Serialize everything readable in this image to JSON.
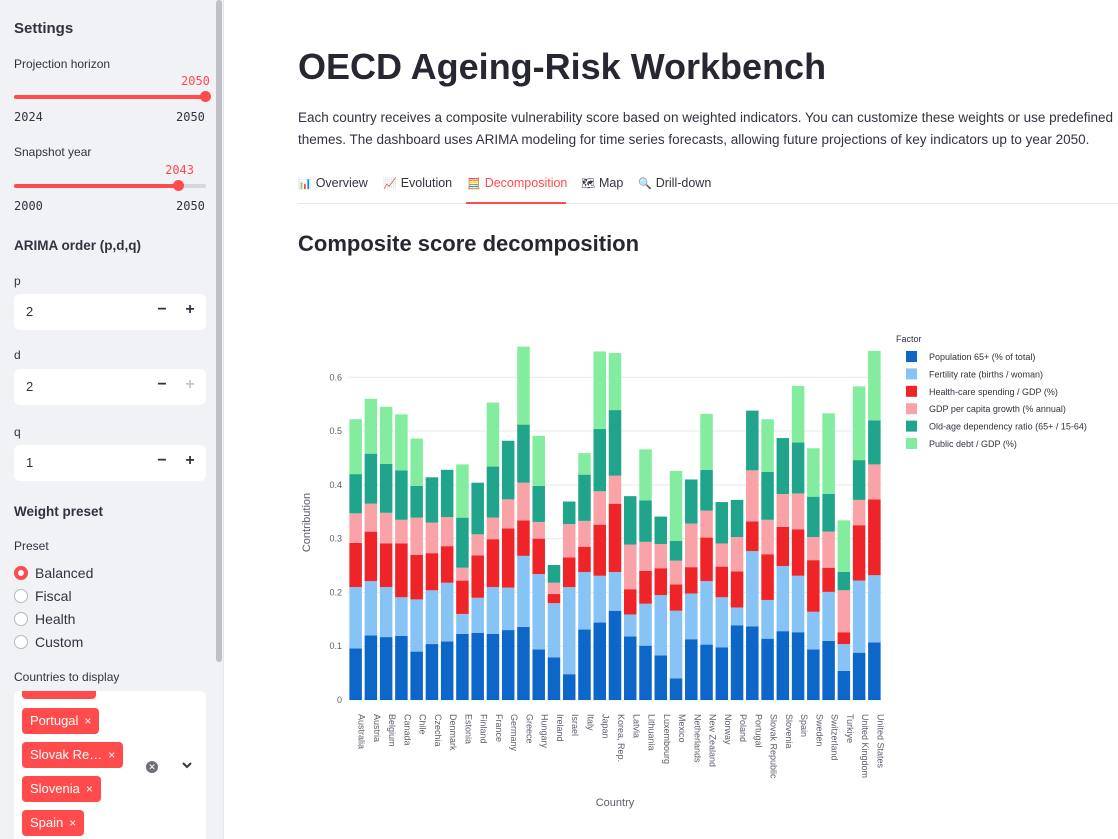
{
  "sidebar": {
    "title": "Settings",
    "horizon": {
      "label": "Projection horizon",
      "value": 2050,
      "value_text": "2050",
      "min_text": "2024",
      "max_text": "2050",
      "fraction": 1.0
    },
    "snapshot": {
      "label": "Snapshot year",
      "value": 2043,
      "value_text": "2043",
      "min_text": "2000",
      "max_text": "2050",
      "fraction": 0.86
    },
    "arima": {
      "title": "ARIMA order (p,d,q)",
      "p": {
        "label": "p",
        "value": "2"
      },
      "d": {
        "label": "d",
        "value": "2"
      },
      "q": {
        "label": "q",
        "value": "1"
      }
    },
    "weights": {
      "title": "Weight preset",
      "preset_label": "Preset",
      "options": [
        "Balanced",
        "Fiscal",
        "Health",
        "Custom"
      ],
      "selected": "Balanced"
    },
    "countries": {
      "label": "Countries to display",
      "chips": [
        "Portugal",
        "Slovak Re…",
        "Slovenia",
        "Spain"
      ],
      "chip_close": "×"
    },
    "stepper": {
      "minus": "−",
      "plus": "+"
    }
  },
  "main": {
    "title": "OECD Ageing-Risk Workbench",
    "description": "Each country receives a composite vulnerability score based on weighted indicators. You can customize these weights or use predefined themes. The dashboard uses ARIMA modeling for time series forecasts, allowing future projections of key indicators up to year 2050.",
    "tabs": [
      {
        "label": "Overview",
        "icon": "bar-chart-icon",
        "glyph": "📊"
      },
      {
        "label": "Evolution",
        "icon": "trend-chart-icon",
        "glyph": "📈"
      },
      {
        "label": "Decomposition",
        "icon": "abacus-icon",
        "glyph": "🧮"
      },
      {
        "label": "Map",
        "icon": "map-icon",
        "glyph": "🗺"
      },
      {
        "label": "Drill-down",
        "icon": "magnifier-icon",
        "glyph": "🔍"
      }
    ],
    "active_tab": "Decomposition",
    "section_title": "Composite score decomposition"
  },
  "colors": {
    "accent": "#ff4b4b",
    "sidebar_bg": "#f0f2f6"
  },
  "chart_data": {
    "type": "bar",
    "stacked": true,
    "title": "",
    "xlabel": "Country",
    "ylabel": "Contribution",
    "ylim": [
      0,
      0.66
    ],
    "yticks": [
      0,
      0.1,
      0.2,
      0.3,
      0.4,
      0.5,
      0.6
    ],
    "ytick_labels": [
      "0",
      "0.1",
      "0.2",
      "0.3",
      "0.4",
      "0.5",
      "0.6"
    ],
    "grid": true,
    "legend_title": "Factor",
    "legend_position": "top-right",
    "categories": [
      "Australia",
      "Austria",
      "Belgium",
      "Canada",
      "Chile",
      "Czechia",
      "Denmark",
      "Estonia",
      "Finland",
      "France",
      "Germany",
      "Greece",
      "Hungary",
      "Ireland",
      "Israel",
      "Italy",
      "Japan",
      "Korea, Rep.",
      "Latvia",
      "Lithuania",
      "Luxembourg",
      "Mexico",
      "Netherlands",
      "New Zealand",
      "Norway",
      "Poland",
      "Portugal",
      "Slovak Republic",
      "Slovenia",
      "Spain",
      "Sweden",
      "Switzerland",
      "Turkiye",
      "United Kingdom",
      "United States"
    ],
    "series": [
      {
        "name": "Population 65+ (% of total)",
        "color": "#0d67c8",
        "values": [
          0.096,
          0.12,
          0.117,
          0.119,
          0.09,
          0.104,
          0.109,
          0.123,
          0.125,
          0.123,
          0.13,
          0.136,
          0.094,
          0.079,
          0.048,
          0.131,
          0.144,
          0.166,
          0.118,
          0.101,
          0.083,
          0.04,
          0.113,
          0.103,
          0.098,
          0.139,
          0.137,
          0.114,
          0.128,
          0.126,
          0.094,
          0.11,
          0.054,
          0.088,
          0.107
        ]
      },
      {
        "name": "Fertility rate (births / woman)",
        "color": "#87c4f5",
        "values": [
          0.114,
          0.101,
          0.093,
          0.072,
          0.097,
          0.1,
          0.109,
          0.037,
          0.065,
          0.087,
          0.079,
          0.132,
          0.14,
          0.101,
          0.162,
          0.107,
          0.087,
          0.072,
          0.041,
          0.078,
          0.112,
          0.126,
          0.085,
          0.118,
          0.093,
          0.033,
          0.14,
          0.072,
          0.121,
          0.105,
          0.07,
          0.091,
          0.05,
          0.134,
          0.125
        ]
      },
      {
        "name": "Health-care spending / GDP (%)",
        "color": "#ee2428",
        "values": [
          0.082,
          0.092,
          0.081,
          0.1,
          0.083,
          0.069,
          0.068,
          0.062,
          0.079,
          0.089,
          0.11,
          0.066,
          0.066,
          0.017,
          0.055,
          0.047,
          0.095,
          0.127,
          0.047,
          0.061,
          0.05,
          0.049,
          0.049,
          0.081,
          0.057,
          0.067,
          0.055,
          0.085,
          0.073,
          0.086,
          0.096,
          0.045,
          0.022,
          0.103,
          0.141
        ]
      },
      {
        "name": "GDP per capita growth (% annual)",
        "color": "#f9a3a8",
        "values": [
          0.055,
          0.052,
          0.057,
          0.044,
          0.069,
          0.057,
          0.054,
          0.024,
          0.039,
          0.04,
          0.054,
          0.07,
          0.031,
          0.021,
          0.062,
          0.048,
          0.062,
          0.052,
          0.083,
          0.054,
          0.045,
          0.044,
          0.081,
          0.05,
          0.043,
          0.064,
          0.095,
          0.064,
          0.061,
          0.067,
          0.043,
          0.067,
          0.078,
          0.047,
          0.065
        ]
      },
      {
        "name": "Old-age dependency ratio (65+ / 15-64)",
        "color": "#20a58c",
        "values": [
          0.073,
          0.093,
          0.091,
          0.092,
          0.059,
          0.084,
          0.088,
          0.093,
          0.096,
          0.095,
          0.109,
          0.108,
          0.067,
          0.033,
          0.042,
          0.086,
          0.116,
          0.122,
          0.09,
          0.077,
          0.051,
          0.037,
          0.082,
          0.076,
          0.077,
          0.069,
          0.111,
          0.089,
          0.104,
          0.095,
          0.075,
          0.07,
          0.034,
          0.074,
          0.082
        ]
      },
      {
        "name": "Public debt / GDP (%)",
        "color": "#83ec9f",
        "values": [
          0.102,
          0.102,
          0.106,
          0.104,
          0.088,
          0.0,
          0.0,
          0.099,
          0.0,
          0.119,
          0.0,
          0.145,
          0.093,
          0.0,
          0.0,
          0.04,
          0.144,
          0.106,
          0.0,
          0.095,
          0.0,
          0.13,
          0.0,
          0.104,
          0.0,
          0.0,
          0.0,
          0.098,
          0.0,
          0.105,
          0.09,
          0.15,
          0.096,
          0.137,
          0.129
        ]
      }
    ]
  }
}
